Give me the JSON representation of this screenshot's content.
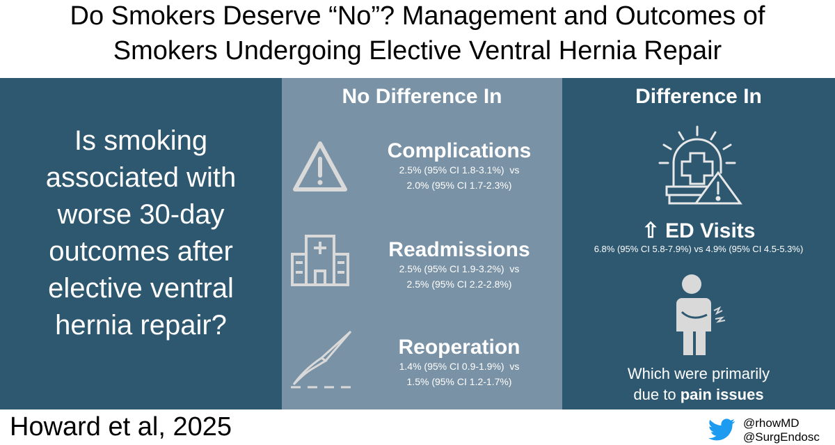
{
  "header": {
    "title_lines": [
      "Do Smokers Deserve “No”? Management and Outcomes of",
      "Smokers Undergoing Elective Ventral Hernia Repair"
    ]
  },
  "question": {
    "lines": [
      "Is smoking",
      "associated with",
      "worse 30-day",
      "outcomes after",
      "elective ventral",
      "hernia repair?"
    ]
  },
  "no_difference": {
    "heading": "No Difference In",
    "items": [
      {
        "name": "Complications",
        "stats": [
          "2.5% (95% CI 1.8-3.1%)  vs",
          "2.0% (95% CI 1.7-2.3%)"
        ]
      },
      {
        "name": "Readmissions",
        "stats": [
          "2.5% (95% CI 1.9-3.2%)  vs",
          "2.5% (95% CI 2.2-2.8%)"
        ]
      },
      {
        "name": "Reoperation",
        "stats": [
          "1.4% (95% CI 0.9-1.9%)  vs",
          "1.5% (95% CI 1.2-1.7%)"
        ]
      }
    ]
  },
  "difference": {
    "heading": "Difference In",
    "label": "⇧ ED Visits",
    "stats": "6.8% (95% CI 5.8-7.9%) vs 4.9% (95% CI 4.5-5.3%)",
    "note_line1": "Which were primarily",
    "note_line2_prefix": "due to",
    "note_line2_bold": "pain issues"
  },
  "footer": {
    "citation": "Howard et al, 2025",
    "handles": [
      "@rhowMD",
      "@SurgEndosc"
    ]
  }
}
